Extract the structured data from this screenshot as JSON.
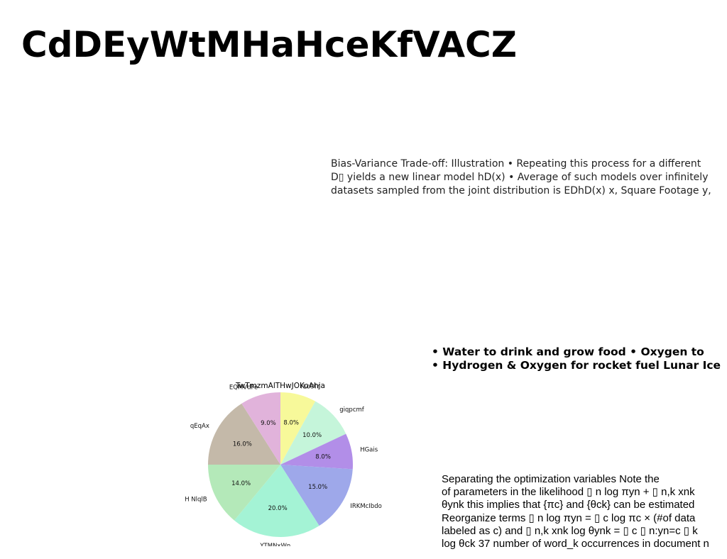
{
  "page": {
    "title": "CdDEyWtMHaHceKfVACZ"
  },
  "blocks": {
    "bias_variance": [
      "Bias-Variance Trade-off: Illustration • Repeating this process for a different",
      "D▯ yields a new linear model hD(x) • Average of such models over infinitely",
      "datasets sampled from the joint distribution is EDhD(x) x, Square Footage y,"
    ],
    "lunar_ice": [
      "• Water to drink and grow food • Oxygen to",
      "• Hydrogen & Oxygen for rocket fuel Lunar Ice"
    ],
    "optimization": [
      "Separating the optimization variables Note the",
      "of parameters in the likelihood ▯ n log πyn + ▯ n,k xnk",
      "θynk this implies that {πc} and {θck} can be estimated",
      "Reorganize terms ▯ n log πyn = ▯ c log πc × (#of data",
      "labeled as c) and ▯ n,k xnk log θynk = ▯ c ▯ n:yn=c ▯ k",
      "log θck 37 number of word_k occurrences in document n"
    ]
  },
  "chart_data": {
    "type": "pie",
    "title": "TwTmzmAlTHwJOKoAhja",
    "start_angle_deg": 90,
    "direction": "clockwise",
    "slices": [
      {
        "label": "rLcOlY",
        "value": 8.0,
        "pct_label": "8.0%",
        "color": "#f7f99a"
      },
      {
        "label": "giqpcmf",
        "value": 10.0,
        "pct_label": "10.0%",
        "color": "#c5f5da"
      },
      {
        "label": "HGais",
        "value": 8.0,
        "pct_label": "8.0%",
        "color": "#b28ee8"
      },
      {
        "label": "IRKMcIbdo",
        "value": 15.0,
        "pct_label": "15.0%",
        "color": "#9ea8ea"
      },
      {
        "label": "YTMNxWn",
        "value": 20.0,
        "pct_label": "20.0%",
        "color": "#a4f3d5"
      },
      {
        "label": "H NlqlB",
        "value": 14.0,
        "pct_label": "14.0%",
        "color": "#b4e9b9"
      },
      {
        "label": "qEqAx",
        "value": 16.0,
        "pct_label": "16.0%",
        "color": "#c4b9a9"
      },
      {
        "label": "EQMVdFe",
        "value": 9.0,
        "pct_label": "9.0%",
        "color": "#e1b3db"
      }
    ]
  }
}
